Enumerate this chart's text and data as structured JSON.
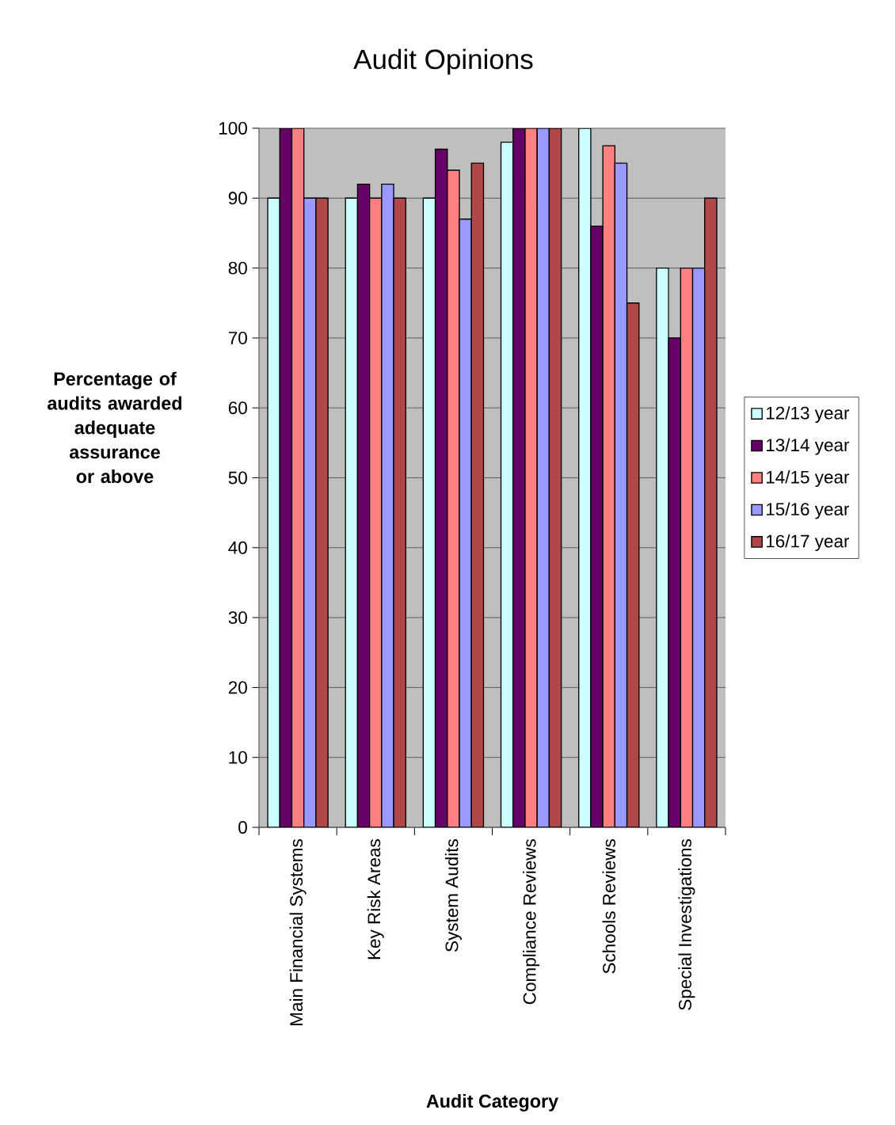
{
  "chart_data": {
    "type": "bar",
    "title": "Audit Opinions",
    "xlabel": "Audit Category",
    "ylabel": "Percentage of audits awarded adequate assurance or above",
    "categories": [
      "Main Financial Systems",
      "Key Risk Areas",
      "System Audits",
      "Compliance Reviews",
      "Schools Reviews",
      "Special Investigations"
    ],
    "series": [
      {
        "name": "12/13 year",
        "color": "#ccffff",
        "values": [
          90,
          90,
          90,
          98,
          100,
          80
        ]
      },
      {
        "name": "13/14 year",
        "color": "#660066",
        "values": [
          100,
          92,
          97,
          100,
          86,
          70
        ]
      },
      {
        "name": "14/15 year",
        "color": "#ff8080",
        "values": [
          100,
          90,
          94,
          100,
          97.5,
          80
        ]
      },
      {
        "name": "15/16 year",
        "color": "#9999ff",
        "values": [
          90,
          92,
          87,
          100,
          95,
          80
        ]
      },
      {
        "name": "16/17 year",
        "color": "#b04848",
        "values": [
          90,
          90,
          95,
          100,
          75,
          90
        ]
      }
    ],
    "ylim": [
      0,
      100
    ],
    "yticks": [
      0,
      10,
      20,
      30,
      40,
      50,
      60,
      70,
      80,
      90,
      100
    ],
    "grid": "y",
    "legend": "right"
  }
}
